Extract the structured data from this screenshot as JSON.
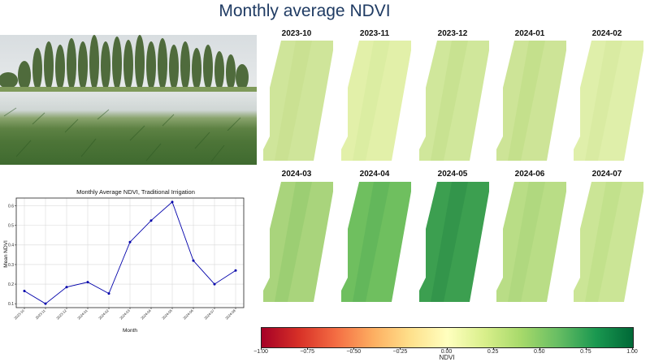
{
  "page": {
    "title": "Monthly average NDVI"
  },
  "photo": {
    "description_icon": "wheat-field-photo"
  },
  "panels": [
    {
      "label": "2023-10",
      "fill": "#cfe59a",
      "shade": "#c7e08f"
    },
    {
      "label": "2023-11",
      "fill": "#e2f0a9",
      "shade": "#d9eba0"
    },
    {
      "label": "2023-12",
      "fill": "#d0e79b",
      "shade": "#c4df8d"
    },
    {
      "label": "2024-01",
      "fill": "#cde497",
      "shade": "#c1de88"
    },
    {
      "label": "2024-02",
      "fill": "#dfefaa",
      "shade": "#d6ea9e"
    },
    {
      "label": "2024-03",
      "fill": "#a9d47c",
      "shade": "#97cc6f"
    },
    {
      "label": "2024-04",
      "fill": "#6fbf5f",
      "shade": "#5eb35a"
    },
    {
      "label": "2024-05",
      "fill": "#3c9f50",
      "shade": "#2f9249"
    },
    {
      "label": "2024-06",
      "fill": "#b9dd86",
      "shade": "#acd57c"
    },
    {
      "label": "2024-07",
      "fill": "#cbe596",
      "shade": "#bedf88"
    }
  ],
  "colorbar": {
    "label": "NDVI",
    "ticks": [
      "−1.00",
      "−0.75",
      "−0.50",
      "−0.25",
      "0.00",
      "0.25",
      "0.50",
      "0.75",
      "1.00"
    ],
    "tick_values": [
      -1.0,
      -0.75,
      -0.5,
      -0.25,
      0.0,
      0.25,
      0.5,
      0.75,
      1.0
    ],
    "colors": [
      "#a50026",
      "#d73027",
      "#f46d43",
      "#fdae61",
      "#fee08b",
      "#ffffbf",
      "#d9ef8b",
      "#a6d96a",
      "#66bd63",
      "#1a9850",
      "#006837"
    ]
  },
  "chart_data": {
    "type": "line",
    "title": "Monthly Average NDVI, Traditional Irrigation",
    "xlabel": "Month",
    "ylabel": "Mean NDVI",
    "categories": [
      "2023-10",
      "2023-11",
      "2023-12",
      "2024-01",
      "2024-02",
      "2024-03",
      "2024-04",
      "2024-05",
      "2024-06",
      "2024-07",
      "2024-08"
    ],
    "values": [
      0.165,
      0.1,
      0.185,
      0.21,
      0.152,
      0.415,
      0.525,
      0.62,
      0.32,
      0.2,
      0.27
    ],
    "ylim": [
      0.08,
      0.64
    ],
    "yticks": [
      "0.1",
      "0.2",
      "0.3",
      "0.4",
      "0.5",
      "0.6"
    ],
    "ytick_values": [
      0.1,
      0.2,
      0.3,
      0.4,
      0.5,
      0.6
    ],
    "grid": true,
    "line_color": "#0000aa"
  }
}
